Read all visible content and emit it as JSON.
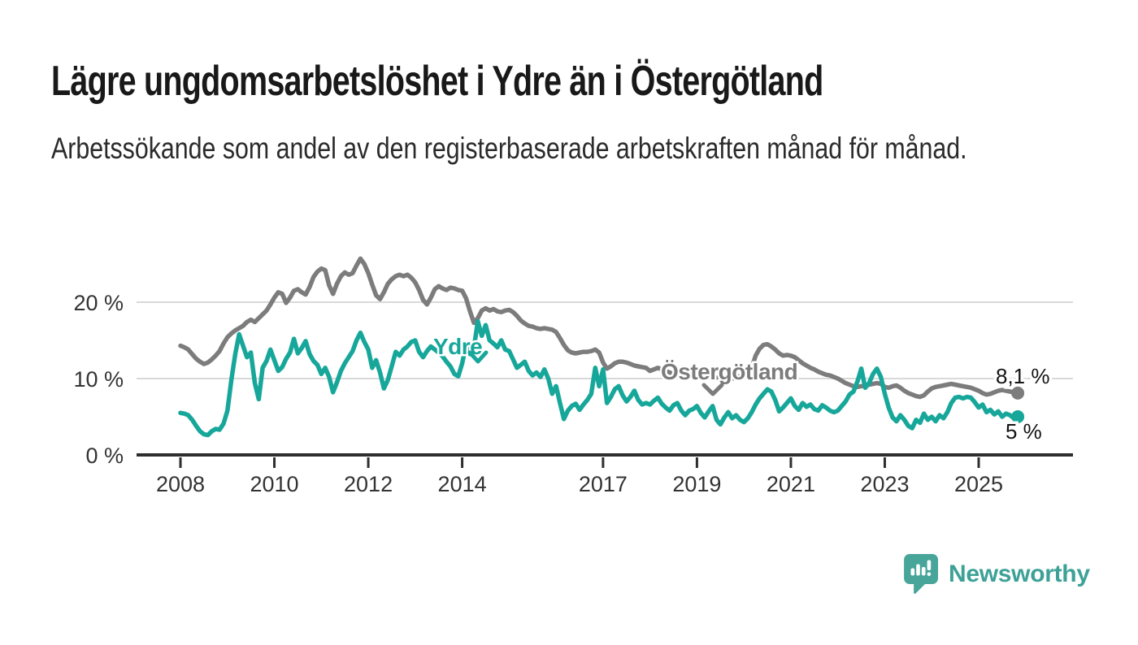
{
  "header": {
    "title": "Lägre ungdomsarbetslöshet i Ydre än i Östergötland",
    "subtitle": "Arbetssökande som andel av den registerbaserade arbetskraften månad för månad."
  },
  "footer": {
    "brand": "Newsworthy",
    "logo_icon": "newsworthy-bubble-barchart-icon"
  },
  "colors": {
    "ydre_teal": "#17a79a",
    "ostergotland_gray": "#7c7c7c",
    "grid": "#d9d9d9",
    "axis": "#2e2e2e",
    "logo_teal": "#47a59a"
  },
  "chart_data": {
    "type": "line",
    "unit": "%",
    "frequency_points_per_year": 12,
    "x_start_year": 2008.0,
    "x_end_year": 2025.833,
    "xlim": [
      2008,
      2025.92
    ],
    "ylim": [
      0,
      27
    ],
    "grid": "horizontal",
    "legend_position": "inline-labels",
    "x_ticks": [
      {
        "year": 2008,
        "label": "2008"
      },
      {
        "year": 2010,
        "label": "2010"
      },
      {
        "year": 2012,
        "label": "2012"
      },
      {
        "year": 2014,
        "label": "2014"
      },
      {
        "year": 2017,
        "label": "2017"
      },
      {
        "year": 2019,
        "label": "2019"
      },
      {
        "year": 2021,
        "label": "2021"
      },
      {
        "year": 2023,
        "label": "2023"
      },
      {
        "year": 2025,
        "label": "2025"
      }
    ],
    "y_ticks": [
      {
        "value": 0,
        "label": "0 %"
      },
      {
        "value": 10,
        "label": "10 %"
      },
      {
        "value": 20,
        "label": "20 %"
      }
    ],
    "series": [
      {
        "name": "Ydre",
        "color": "#17a79a",
        "end_label": "5 %",
        "last_value": 5.0,
        "values": [
          5.5,
          5.4,
          5.2,
          4.6,
          3.8,
          3.1,
          2.7,
          2.6,
          3.1,
          3.4,
          3.3,
          4.1,
          5.8,
          9.8,
          13.2,
          15.8,
          14.3,
          12.8,
          13.4,
          9.4,
          7.3,
          11.4,
          12.3,
          13.8,
          12.4,
          11.0,
          11.5,
          12.6,
          13.4,
          15.2,
          13.3,
          14.0,
          14.9,
          13.2,
          12.3,
          11.8,
          10.6,
          11.4,
          10.2,
          8.2,
          9.5,
          11.0,
          12.0,
          12.8,
          13.6,
          15.0,
          16.0,
          14.8,
          13.8,
          11.4,
          12.4,
          10.8,
          8.7,
          9.8,
          11.6,
          13.5,
          13.0,
          13.8,
          14.2,
          14.8,
          15.0,
          13.5,
          12.8,
          13.6,
          14.2,
          13.8,
          13.4,
          12.9,
          12.2,
          11.6,
          10.6,
          10.3,
          12.0,
          14.4,
          13.2,
          14.0,
          17.5,
          15.6,
          17.0,
          15.0,
          14.6,
          14.1,
          15.0,
          13.8,
          13.6,
          12.5,
          11.4,
          11.8,
          12.2,
          11.0,
          10.4,
          10.8,
          10.2,
          11.2,
          10.0,
          8.0,
          9.0,
          6.8,
          4.7,
          5.8,
          6.4,
          6.7,
          5.9,
          6.6,
          7.2,
          8.0,
          11.4,
          9.0,
          11.2,
          6.8,
          7.6,
          8.6,
          9.0,
          7.8,
          7.0,
          7.6,
          8.4,
          7.2,
          6.6,
          6.8,
          6.6,
          7.1,
          7.5,
          6.7,
          6.2,
          5.8,
          6.5,
          6.8,
          5.8,
          5.2,
          5.8,
          6.0,
          6.4,
          5.5,
          4.9,
          5.7,
          6.4,
          4.6,
          4.0,
          4.9,
          5.6,
          4.8,
          5.2,
          4.6,
          4.3,
          4.8,
          5.6,
          6.6,
          7.4,
          8.0,
          8.6,
          8.3,
          7.2,
          5.7,
          6.2,
          6.8,
          7.4,
          6.4,
          5.9,
          6.8,
          6.3,
          6.6,
          6.0,
          5.8,
          6.5,
          6.2,
          5.8,
          5.6,
          5.8,
          6.4,
          7.0,
          7.9,
          8.3,
          9.6,
          11.3,
          8.8,
          9.4,
          10.6,
          11.3,
          10.2,
          8.0,
          6.2,
          4.9,
          4.4,
          5.2,
          4.6,
          3.8,
          3.5,
          4.6,
          4.2,
          5.4,
          4.6,
          5.0,
          4.4,
          5.2,
          4.8,
          5.6,
          6.8,
          7.5,
          7.6,
          7.4,
          7.6,
          7.5,
          6.9,
          6.2,
          6.6,
          5.6,
          5.9,
          5.3,
          5.7,
          5.0,
          5.4,
          5.2,
          4.8,
          5.0
        ]
      },
      {
        "name": "Östergötland",
        "color": "#7c7c7c",
        "end_label": "8,1 %",
        "last_value": 8.1,
        "values": [
          14.3,
          14.1,
          13.8,
          13.2,
          12.6,
          12.2,
          11.9,
          12.1,
          12.5,
          13.0,
          13.6,
          14.6,
          15.4,
          15.9,
          16.3,
          16.6,
          16.9,
          17.4,
          17.7,
          17.4,
          17.9,
          18.4,
          18.9,
          19.7,
          20.6,
          21.3,
          21.1,
          19.9,
          20.6,
          21.5,
          21.7,
          21.3,
          21.0,
          22.0,
          23.3,
          24.0,
          24.4,
          24.2,
          22.2,
          21.1,
          22.4,
          23.4,
          23.9,
          23.6,
          23.8,
          24.8,
          25.7,
          25.0,
          23.8,
          22.3,
          20.9,
          20.4,
          21.3,
          22.4,
          23.0,
          23.4,
          23.6,
          23.4,
          23.6,
          23.2,
          22.6,
          21.6,
          20.3,
          19.7,
          20.6,
          21.7,
          22.1,
          21.8,
          21.6,
          21.9,
          21.8,
          21.6,
          21.5,
          20.5,
          18.8,
          17.3,
          17.9,
          18.9,
          19.2,
          18.9,
          19.1,
          18.8,
          18.7,
          18.9,
          19.0,
          18.7,
          18.2,
          17.6,
          17.2,
          16.9,
          16.8,
          16.6,
          16.5,
          16.6,
          16.5,
          16.4,
          16.1,
          15.3,
          14.4,
          13.7,
          13.4,
          13.3,
          13.4,
          13.5,
          13.5,
          13.6,
          13.8,
          13.4,
          12.1,
          11.3,
          11.6,
          12.0,
          12.2,
          12.2,
          12.1,
          11.9,
          11.7,
          11.6,
          11.5,
          11.4,
          11.0,
          11.2,
          11.4,
          11.2,
          11.0,
          10.8,
          10.6,
          10.4,
          10.3,
          10.3,
          10.4,
          10.5,
          10.6,
          10.4,
          10.2,
          10.1,
          10.0,
          10.1,
          10.2,
          10.1,
          10.0,
          10.0,
          10.1,
          10.3,
          10.4,
          10.6,
          11.4,
          13.0,
          13.9,
          14.4,
          14.5,
          14.2,
          13.8,
          13.3,
          13.0,
          13.1,
          13.0,
          12.8,
          12.4,
          12.0,
          11.7,
          11.4,
          11.2,
          10.9,
          10.7,
          10.5,
          10.4,
          10.2,
          10.0,
          9.7,
          9.4,
          9.2,
          9.0,
          8.9,
          9.0,
          9.1,
          9.2,
          9.3,
          9.4,
          9.3,
          8.9,
          8.8,
          9.0,
          9.1,
          8.8,
          8.4,
          8.1,
          7.9,
          7.7,
          7.6,
          7.8,
          8.3,
          8.7,
          8.9,
          9.0,
          9.1,
          9.2,
          9.3,
          9.2,
          9.1,
          9.0,
          8.9,
          8.8,
          8.6,
          8.4,
          8.1,
          7.9,
          8.0,
          8.2,
          8.4,
          8.5,
          8.4,
          8.3,
          8.2,
          8.1
        ]
      }
    ]
  }
}
